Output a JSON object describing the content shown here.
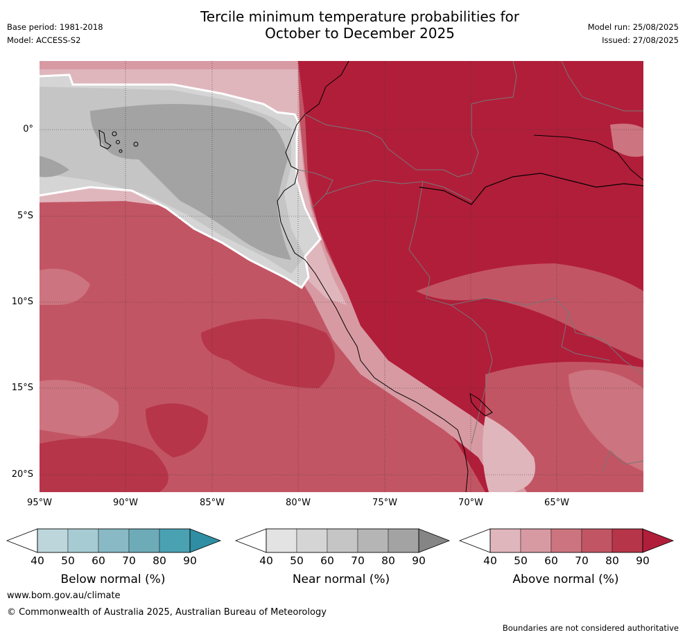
{
  "title_line1": "Tercile minimum temperature probabilities for",
  "title_line2": "October to December 2025",
  "meta_left": [
    "Base period: 1981-2018",
    "Model: ACCESS-S2"
  ],
  "meta_right": [
    "Model run: 25/08/2025",
    "Issued: 27/08/2025"
  ],
  "lat_labels": [
    "0°",
    "5°S",
    "10°S",
    "15°S",
    "20°S"
  ],
  "lon_labels": [
    "95°W",
    "90°W",
    "85°W",
    "80°W",
    "75°W",
    "70°W",
    "65°W"
  ],
  "legends": [
    {
      "title": "Below normal (%)",
      "ticks": [
        "40",
        "50",
        "60",
        "70",
        "80",
        "90"
      ],
      "colors": [
        "#ffffff",
        "#bcd6dc",
        "#a7cbd2",
        "#88b9c4",
        "#6eabb8",
        "#4aa1b2",
        "#2f8ea3"
      ]
    },
    {
      "title": "Near normal (%)",
      "ticks": [
        "40",
        "50",
        "60",
        "70",
        "80",
        "90"
      ],
      "colors": [
        "#ffffff",
        "#e3e3e3",
        "#d5d5d5",
        "#c5c5c5",
        "#b5b5b5",
        "#a3a3a3",
        "#858585"
      ]
    },
    {
      "title": "Above normal (%)",
      "ticks": [
        "40",
        "50",
        "60",
        "70",
        "80",
        "90"
      ],
      "colors": [
        "#ffffff",
        "#e0b6bd",
        "#d79aa3",
        "#cc747f",
        "#c25564",
        "#b63549",
        "#b11e3a"
      ]
    }
  ],
  "footer_url": "www.bom.gov.au/climate",
  "footer_copyright": "© Commonwealth of Australia 2025, Australian Bureau of Meteorology",
  "disclaimer": "Boundaries are not considered authoritative"
}
